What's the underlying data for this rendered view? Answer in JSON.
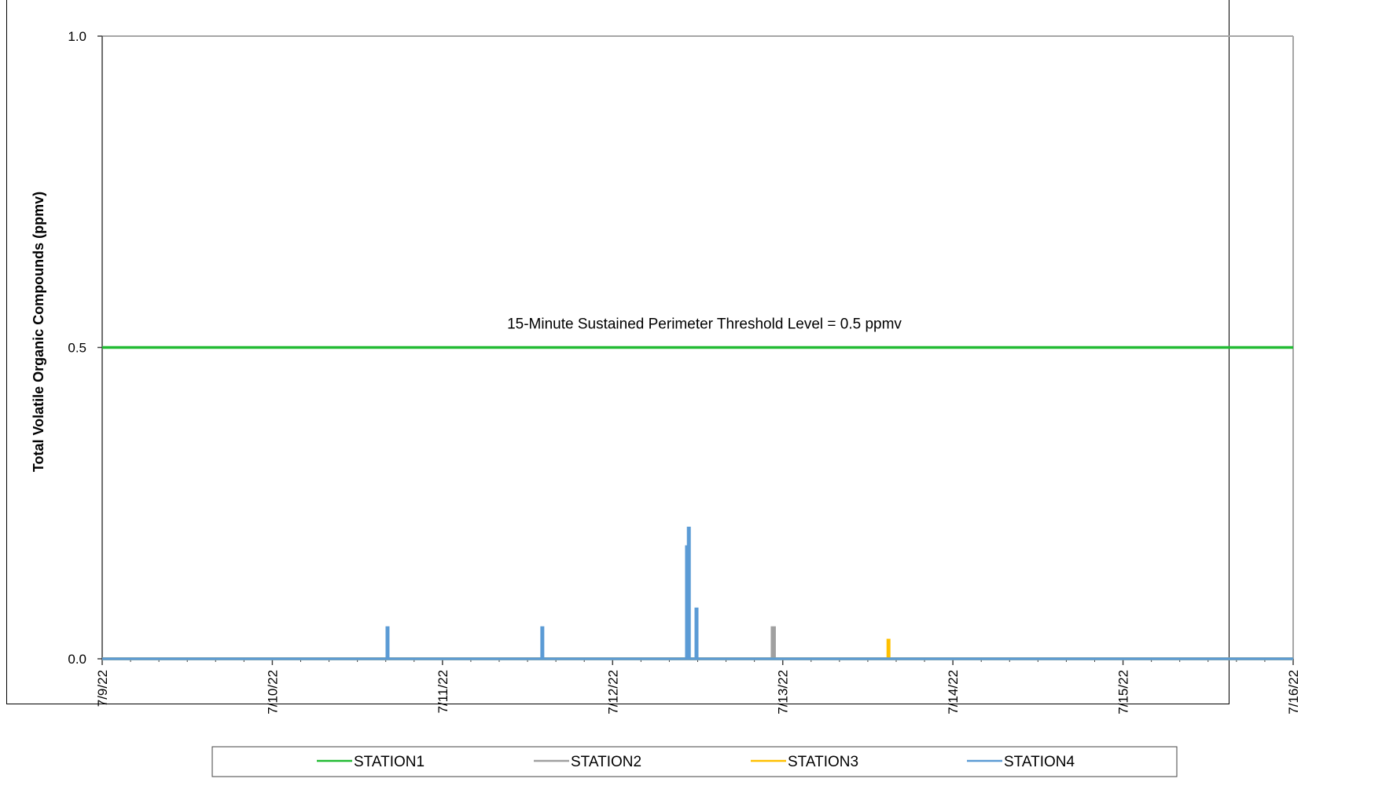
{
  "chart_data": {
    "type": "line",
    "title": "",
    "xlabel": "",
    "ylabel": "Total Volatile Organic Compounds (ppmv)",
    "ylim": [
      0,
      1.0
    ],
    "yticks": [
      "0.0",
      "0.5",
      "1.0"
    ],
    "xlim": [
      "7/9/22",
      "7/16/22"
    ],
    "xticks": [
      "7/9/22",
      "7/10/22",
      "7/11/22",
      "7/12/22",
      "7/13/22",
      "7/14/22",
      "7/15/22",
      "7/16/22"
    ],
    "grid": false,
    "legend_position": "bottom",
    "annotation": "15-Minute Sustained Perimeter Threshold Level = 0.5 ppmv",
    "series": [
      {
        "name": "STATION1",
        "color": "#22bb33",
        "points": [
          [
            "7/9/22",
            0.5
          ],
          [
            "7/16/22",
            0.5
          ]
        ]
      },
      {
        "name": "STATION2",
        "color": "#a0a0a0",
        "points": [
          [
            "7/9/22",
            0
          ],
          [
            "7/12/22 22:30",
            0
          ],
          [
            "7/12/22 22:30",
            0.05
          ],
          [
            "7/12/22 22:50",
            0.05
          ],
          [
            "7/12/22 22:50",
            0
          ],
          [
            "7/16/22",
            0
          ]
        ]
      },
      {
        "name": "STATION3",
        "color": "#ffc000",
        "points": [
          [
            "7/9/22",
            0
          ],
          [
            "7/13/22 14:50",
            0
          ],
          [
            "7/13/22 14:50",
            0.03
          ],
          [
            "7/13/22 15:00",
            0.03
          ],
          [
            "7/13/22 15:00",
            0
          ],
          [
            "7/16/22",
            0
          ]
        ]
      },
      {
        "name": "STATION4",
        "color": "#5b9bd5",
        "points": [
          [
            "7/9/22",
            0
          ],
          [
            "7/10/22 16:10",
            0
          ],
          [
            "7/10/22 16:10",
            0.05
          ],
          [
            "7/10/22 16:20",
            0.05
          ],
          [
            "7/10/22 16:20",
            0
          ],
          [
            "7/11/22 14:00",
            0
          ],
          [
            "7/11/22 14:00",
            0.05
          ],
          [
            "7/11/22 14:10",
            0.05
          ],
          [
            "7/11/22 14:10",
            0
          ],
          [
            "7/12/22 10:25",
            0
          ],
          [
            "7/12/22 10:25",
            0.18
          ],
          [
            "7/12/22 10:35",
            0.18
          ],
          [
            "7/12/22 10:35",
            0
          ],
          [
            "7/12/22 10:40",
            0
          ],
          [
            "7/12/22 10:40",
            0.21
          ],
          [
            "7/12/22 10:50",
            0.21
          ],
          [
            "7/12/22 10:50",
            0
          ],
          [
            "7/12/22 11:45",
            0
          ],
          [
            "7/12/22 11:45",
            0.08
          ],
          [
            "7/12/22 11:55",
            0.08
          ],
          [
            "7/12/22 11:55",
            0
          ],
          [
            "7/16/22",
            0
          ]
        ]
      }
    ]
  }
}
